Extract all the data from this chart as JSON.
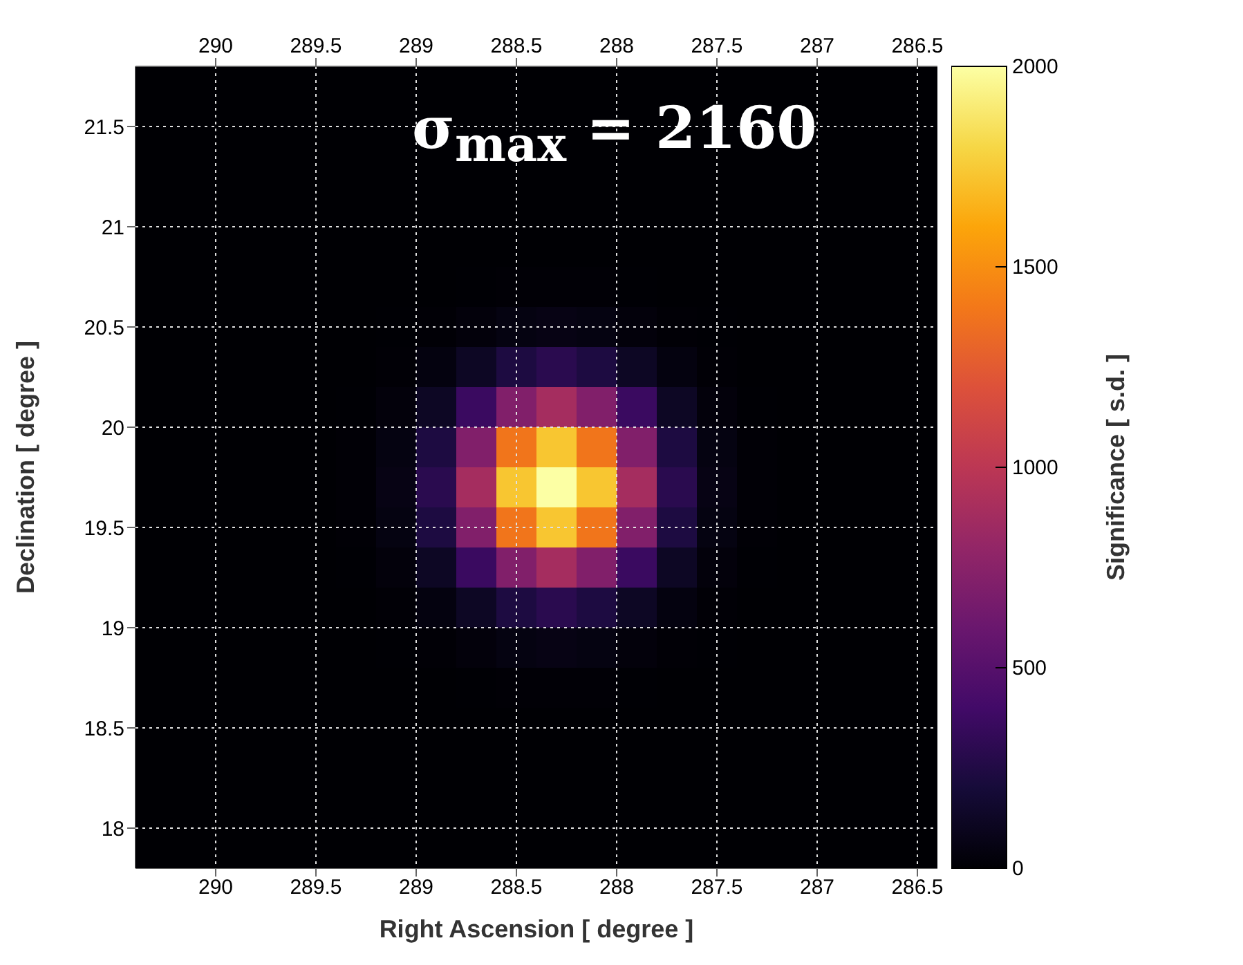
{
  "chart_data": {
    "type": "scatter",
    "marker": "square",
    "xlabel": "Right Ascension [ degree ]",
    "ylabel": "Declination [ degree ]",
    "clabel": "Significance [ s.d. ]",
    "annotations": [
      "σ$_{max}$ = 2160"
    ],
    "xlim": [
      290.4,
      286.4
    ],
    "xticks": [
      290,
      289.5,
      289,
      288.5,
      288,
      287.5,
      287,
      286.5
    ],
    "x2lim": [
      290.4,
      286.4
    ],
    "x2ticks": [
      290,
      289.5,
      289,
      288.5,
      288,
      287.5,
      287,
      286.5
    ],
    "ylim": [
      17.8,
      21.8
    ],
    "yticks": [
      18,
      18.5,
      19,
      19.5,
      20,
      20.5,
      21,
      21.5
    ],
    "clim": [
      0,
      2000
    ],
    "cticks": [
      0,
      500,
      1000,
      1500,
      2000
    ],
    "grid": true,
    "x": [
      290.3,
      290.1,
      289.9,
      289.7,
      289.5,
      289.3,
      289.1,
      288.9,
      288.7,
      288.5,
      288.3,
      288.1,
      287.9,
      287.7,
      287.5,
      287.3,
      287.1,
      286.9,
      286.7,
      286.5,
      290.3,
      290.1,
      289.9,
      289.7,
      289.5,
      289.3,
      289.1,
      288.9,
      288.7,
      288.5,
      288.3,
      288.1,
      287.9,
      287.7,
      287.5,
      287.3,
      287.1,
      286.9,
      286.7,
      286.5,
      290.3,
      290.1,
      289.9,
      289.7,
      289.5,
      289.3,
      289.1,
      288.9,
      288.7,
      288.5,
      288.3,
      288.1,
      287.9,
      287.7,
      287.5,
      287.3,
      287.1,
      286.9,
      286.7,
      286.5,
      290.3,
      290.1,
      289.9,
      289.7,
      289.5,
      289.3,
      289.1,
      288.9,
      288.7,
      288.5,
      288.3,
      288.1,
      287.9,
      287.7,
      287.5,
      287.3,
      287.1,
      286.9,
      286.7,
      286.5,
      290.3,
      290.1,
      289.9,
      289.7,
      289.5,
      289.3,
      289.1,
      288.9,
      288.7,
      288.5,
      288.3,
      288.1,
      287.9,
      287.7,
      287.5,
      287.3,
      287.1,
      286.9,
      286.7,
      286.5,
      290.3,
      290.1,
      289.9,
      289.7,
      289.5,
      289.3,
      289.1,
      288.9,
      288.7,
      288.5,
      288.3,
      288.1,
      287.9,
      287.7,
      287.5,
      287.3,
      287.1,
      286.9,
      286.7,
      286.5,
      290.3,
      290.1,
      289.9,
      289.7,
      289.5,
      289.3,
      289.1,
      288.9,
      288.7,
      288.5,
      288.3,
      288.1,
      287.9,
      287.7,
      287.5,
      287.3,
      287.1,
      286.9,
      286.7,
      286.5,
      290.3,
      290.1,
      289.9,
      289.7,
      289.5,
      289.3,
      289.1,
      288.9,
      288.7,
      288.5,
      288.3,
      288.1,
      287.9,
      287.7,
      287.5,
      287.3,
      287.1,
      286.9,
      286.7,
      286.5,
      290.3,
      290.1,
      289.9,
      289.7,
      289.5,
      289.3,
      289.1,
      288.9,
      288.7,
      288.5,
      288.3,
      288.1,
      287.9,
      287.7,
      287.5,
      287.3,
      287.1,
      286.9,
      286.7,
      286.5,
      290.3,
      290.1,
      289.9,
      289.7,
      289.5,
      289.3,
      289.1,
      288.9,
      288.7,
      288.5,
      288.3,
      288.1,
      287.9,
      287.7,
      287.5,
      287.3,
      287.1,
      286.9,
      286.7,
      286.5,
      290.3,
      290.1,
      289.9,
      289.7,
      289.5,
      289.3,
      289.1,
      288.9,
      288.7,
      288.5,
      288.3,
      288.1,
      287.9,
      287.7,
      287.5,
      287.3,
      287.1,
      286.9,
      286.7,
      286.5,
      290.3,
      290.1,
      289.9,
      289.7,
      289.5,
      289.3,
      289.1,
      288.9,
      288.7,
      288.5,
      288.3,
      288.1,
      287.9,
      287.7,
      287.5,
      287.3,
      287.1,
      286.9,
      286.7,
      286.5,
      290.3,
      290.1,
      289.9,
      289.7,
      289.5,
      289.3,
      289.1,
      288.9,
      288.7,
      288.5,
      288.3,
      288.1,
      287.9,
      287.7,
      287.5,
      287.3,
      287.1,
      286.9,
      286.7,
      286.5,
      290.3,
      290.1,
      289.9,
      289.7,
      289.5,
      289.3,
      289.1,
      288.9,
      288.7,
      288.5,
      288.3,
      288.1,
      287.9,
      287.7,
      287.5,
      287.3,
      287.1,
      286.9,
      286.7,
      286.5,
      290.3,
      290.1,
      289.9,
      289.7,
      289.5,
      289.3,
      289.1,
      288.9,
      288.7,
      288.5,
      288.3,
      288.1,
      287.9,
      287.7,
      287.5,
      287.3,
      287.1,
      286.9,
      286.7,
      286.5,
      290.3,
      290.1,
      289.9,
      289.7,
      289.5,
      289.3,
      289.1,
      288.9,
      288.7,
      288.5,
      288.3,
      288.1,
      287.9,
      287.7,
      287.5,
      287.3,
      287.1,
      286.9,
      286.7,
      286.5,
      290.3,
      290.1,
      289.9,
      289.7,
      289.5,
      289.3,
      289.1,
      288.9,
      288.7,
      288.5,
      288.3,
      288.1,
      287.9,
      287.7,
      287.5,
      287.3,
      287.1,
      286.9,
      286.7,
      286.5,
      290.3,
      290.1,
      289.9,
      289.7,
      289.5,
      289.3,
      289.1,
      288.9,
      288.7,
      288.5,
      288.3,
      288.1,
      287.9,
      287.7,
      287.5,
      287.3,
      287.1,
      286.9,
      286.7,
      286.5,
      290.3,
      290.1,
      289.9,
      289.7,
      289.5,
      289.3,
      289.1,
      288.9,
      288.7,
      288.5,
      288.3,
      288.1,
      287.9,
      287.7,
      287.5,
      287.3,
      287.1,
      286.9,
      286.7,
      286.5,
      290.3,
      290.1,
      289.9,
      289.7,
      289.5,
      289.3,
      289.1,
      288.9,
      288.7,
      288.5,
      288.3,
      288.1,
      287.9,
      287.7,
      287.5,
      287.3,
      287.1,
      286.9,
      286.7,
      286.5
    ],
    "values": [
      21.7,
      21.7,
      21.7,
      21.7,
      21.7,
      21.7,
      21.7,
      21.7,
      21.7,
      21.7,
      21.7,
      21.7,
      21.7,
      21.7,
      21.7,
      21.7,
      21.7,
      21.7,
      21.7,
      21.7,
      21.5,
      21.5,
      21.5,
      21.5,
      21.5,
      21.5,
      21.5,
      21.5,
      21.5,
      21.5,
      21.5,
      21.5,
      21.5,
      21.5,
      21.5,
      21.5,
      21.5,
      21.5,
      21.5,
      21.5,
      21.3,
      21.3,
      21.3,
      21.3,
      21.3,
      21.3,
      21.3,
      21.3,
      21.3,
      21.3,
      21.3,
      21.3,
      21.3,
      21.3,
      21.3,
      21.3,
      21.3,
      21.3,
      21.3,
      21.3,
      21.1,
      21.1,
      21.1,
      21.1,
      21.1,
      21.1,
      21.1,
      21.1,
      21.1,
      21.1,
      21.1,
      21.1,
      21.1,
      21.1,
      21.1,
      21.1,
      21.1,
      21.1,
      21.1,
      21.1,
      20.9,
      20.9,
      20.9,
      20.9,
      20.9,
      20.9,
      20.9,
      20.9,
      20.9,
      20.9,
      20.9,
      20.9,
      20.9,
      20.9,
      20.9,
      20.9,
      20.9,
      20.9,
      20.9,
      20.9,
      20.7,
      20.7,
      20.7,
      20.7,
      20.7,
      20.7,
      20.7,
      20.7,
      20.7,
      20.7,
      20.7,
      20.7,
      20.7,
      20.7,
      20.7,
      20.7,
      20.7,
      20.7,
      20.7,
      20.7,
      20.5,
      20.5,
      20.5,
      20.5,
      20.5,
      20.5,
      20.5,
      20.5,
      20.5,
      20.5,
      20.5,
      20.5,
      20.5,
      20.5,
      20.5,
      20.5,
      20.5,
      20.5,
      20.5,
      20.5,
      20.3,
      20.3,
      20.3,
      20.3,
      20.3,
      20.3,
      20.3,
      20.3,
      20.3,
      20.3,
      20.3,
      20.3,
      20.3,
      20.3,
      20.3,
      20.3,
      20.3,
      20.3,
      20.3,
      20.3,
      20.1,
      20.1,
      20.1,
      20.1,
      20.1,
      20.1,
      20.1,
      20.1,
      20.1,
      20.1,
      20.1,
      20.1,
      20.1,
      20.1,
      20.1,
      20.1,
      20.1,
      20.1,
      20.1,
      20.1,
      19.9,
      19.9,
      19.9,
      19.9,
      19.9,
      19.9,
      19.9,
      19.9,
      19.9,
      19.9,
      19.9,
      19.9,
      19.9,
      19.9,
      19.9,
      19.9,
      19.9,
      19.9,
      19.9,
      19.9,
      19.7,
      19.7,
      19.7,
      19.7,
      19.7,
      19.7,
      19.7,
      19.7,
      19.7,
      19.7,
      19.7,
      19.7,
      19.7,
      19.7,
      19.7,
      19.7,
      19.7,
      19.7,
      19.7,
      19.7,
      19.5,
      19.5,
      19.5,
      19.5,
      19.5,
      19.5,
      19.5,
      19.5,
      19.5,
      19.5,
      19.5,
      19.5,
      19.5,
      19.5,
      19.5,
      19.5,
      19.5,
      19.5,
      19.5,
      19.5,
      19.3,
      19.3,
      19.3,
      19.3,
      19.3,
      19.3,
      19.3,
      19.3,
      19.3,
      19.3,
      19.3,
      19.3,
      19.3,
      19.3,
      19.3,
      19.3,
      19.3,
      19.3,
      19.3,
      19.3,
      19.1,
      19.1,
      19.1,
      19.1,
      19.1,
      19.1,
      19.1,
      19.1,
      19.1,
      19.1,
      19.1,
      19.1,
      19.1,
      19.1,
      19.1,
      19.1,
      19.1,
      19.1,
      19.1,
      19.1,
      18.9,
      18.9,
      18.9,
      18.9,
      18.9,
      18.9,
      18.9,
      18.9,
      18.9,
      18.9,
      18.9,
      18.9,
      18.9,
      18.9,
      18.9,
      18.9,
      18.9,
      18.9,
      18.9,
      18.9,
      18.7,
      18.7,
      18.7,
      18.7,
      18.7,
      18.7,
      18.7,
      18.7,
      18.7,
      18.7,
      18.7,
      18.7,
      18.7,
      18.7,
      18.7,
      18.7,
      18.7,
      18.7,
      18.7,
      18.7,
      18.5,
      18.5,
      18.5,
      18.5,
      18.5,
      18.5,
      18.5,
      18.5,
      18.5,
      18.5,
      18.5,
      18.5,
      18.5,
      18.5,
      18.5,
      18.5,
      18.5,
      18.5,
      18.5,
      18.5,
      18.3,
      18.3,
      18.3,
      18.3,
      18.3,
      18.3,
      18.3,
      18.3,
      18.3,
      18.3,
      18.3,
      18.3,
      18.3,
      18.3,
      18.3,
      18.3,
      18.3,
      18.3,
      18.3,
      18.3,
      18.1,
      18.1,
      18.1,
      18.1,
      18.1,
      18.1,
      18.1,
      18.1,
      18.1,
      18.1,
      18.1,
      18.1,
      18.1,
      18.1,
      18.1,
      18.1,
      18.1,
      18.1,
      18.1,
      18.1,
      17.9,
      17.9,
      17.9,
      17.9,
      17.9,
      17.9,
      17.9,
      17.9,
      17.9,
      17.9,
      17.9,
      17.9,
      17.9,
      17.9,
      17.9,
      17.9,
      17.9,
      17.9,
      17.9,
      17.9
    ],
    "cvalues": [
      0,
      0,
      0,
      0,
      0,
      0,
      0,
      0,
      0,
      0,
      0,
      0,
      0,
      0,
      0,
      0,
      0,
      0,
      0,
      0,
      0,
      0,
      0,
      0,
      0,
      0,
      0,
      0,
      0,
      0,
      0,
      0,
      0,
      0,
      0,
      0,
      0,
      0,
      0,
      0,
      0,
      0,
      0,
      0,
      0,
      0,
      0,
      0,
      0,
      0,
      0,
      0,
      0,
      0,
      0,
      0,
      0,
      0,
      0,
      0,
      0,
      0,
      0,
      0,
      0,
      0,
      0,
      0,
      0,
      0,
      0,
      0,
      0,
      0,
      0,
      0,
      0,
      0,
      0,
      0,
      0,
      0,
      0,
      0,
      0,
      0,
      0,
      0,
      0,
      0,
      0,
      0,
      0,
      0,
      0,
      0,
      0,
      0,
      0,
      0,
      0,
      0,
      0,
      0,
      0,
      0,
      0,
      1,
      3,
      7,
      8,
      7,
      3,
      1,
      0,
      0,
      0,
      0,
      0,
      0,
      0,
      0,
      0,
      0,
      0,
      0,
      2,
      8,
      25,
      49,
      62,
      49,
      25,
      8,
      2,
      0,
      0,
      0,
      0,
      0,
      0,
      0,
      0,
      0,
      0,
      1,
      8,
      40,
      120,
      234,
      292,
      234,
      120,
      40,
      8,
      1,
      0,
      0,
      0,
      0,
      0,
      0,
      0,
      0,
      0,
      3,
      25,
      120,
      365,
      711,
      888,
      711,
      365,
      120,
      25,
      3,
      0,
      0,
      0,
      0,
      0,
      0,
      0,
      0,
      0,
      7,
      49,
      234,
      711,
      1385,
      1730,
      1385,
      711,
      234,
      49,
      7,
      0,
      0,
      0,
      0,
      0,
      0,
      0,
      0,
      0,
      8,
      62,
      292,
      888,
      1730,
      2160,
      1730,
      888,
      292,
      62,
      8,
      0,
      0,
      0,
      0,
      0,
      0,
      0,
      0,
      0,
      7,
      49,
      234,
      711,
      1385,
      1730,
      1385,
      711,
      234,
      49,
      7,
      0,
      0,
      0,
      0,
      0,
      0,
      0,
      0,
      0,
      3,
      25,
      120,
      365,
      711,
      888,
      711,
      365,
      120,
      25,
      3,
      0,
      0,
      0,
      0,
      0,
      0,
      0,
      0,
      0,
      1,
      8,
      40,
      120,
      234,
      292,
      234,
      120,
      40,
      8,
      1,
      0,
      0,
      0,
      0,
      0,
      0,
      0,
      0,
      0,
      0,
      2,
      8,
      25,
      49,
      62,
      49,
      25,
      8,
      2,
      0,
      0,
      0,
      0,
      0,
      0,
      0,
      0,
      0,
      0,
      0,
      0,
      1,
      3,
      7,
      8,
      7,
      3,
      1,
      0,
      0,
      0,
      0,
      0,
      0,
      0,
      0,
      0,
      0,
      0,
      0,
      0,
      0,
      0,
      0,
      0,
      0,
      0,
      0,
      0,
      0,
      0,
      0,
      0,
      0,
      0,
      0,
      0,
      0,
      0,
      0,
      0,
      0,
      0,
      0,
      0,
      0,
      0,
      0,
      0,
      0,
      0,
      0,
      0,
      0,
      0,
      0,
      0,
      0,
      0,
      0,
      0,
      0,
      0,
      0,
      0,
      0,
      0,
      0,
      0,
      0,
      0,
      0,
      0,
      0,
      0,
      0,
      0,
      0,
      0,
      0,
      0,
      0,
      0,
      0,
      0,
      0,
      0,
      0,
      0,
      0,
      0,
      0,
      0,
      0
    ]
  }
}
